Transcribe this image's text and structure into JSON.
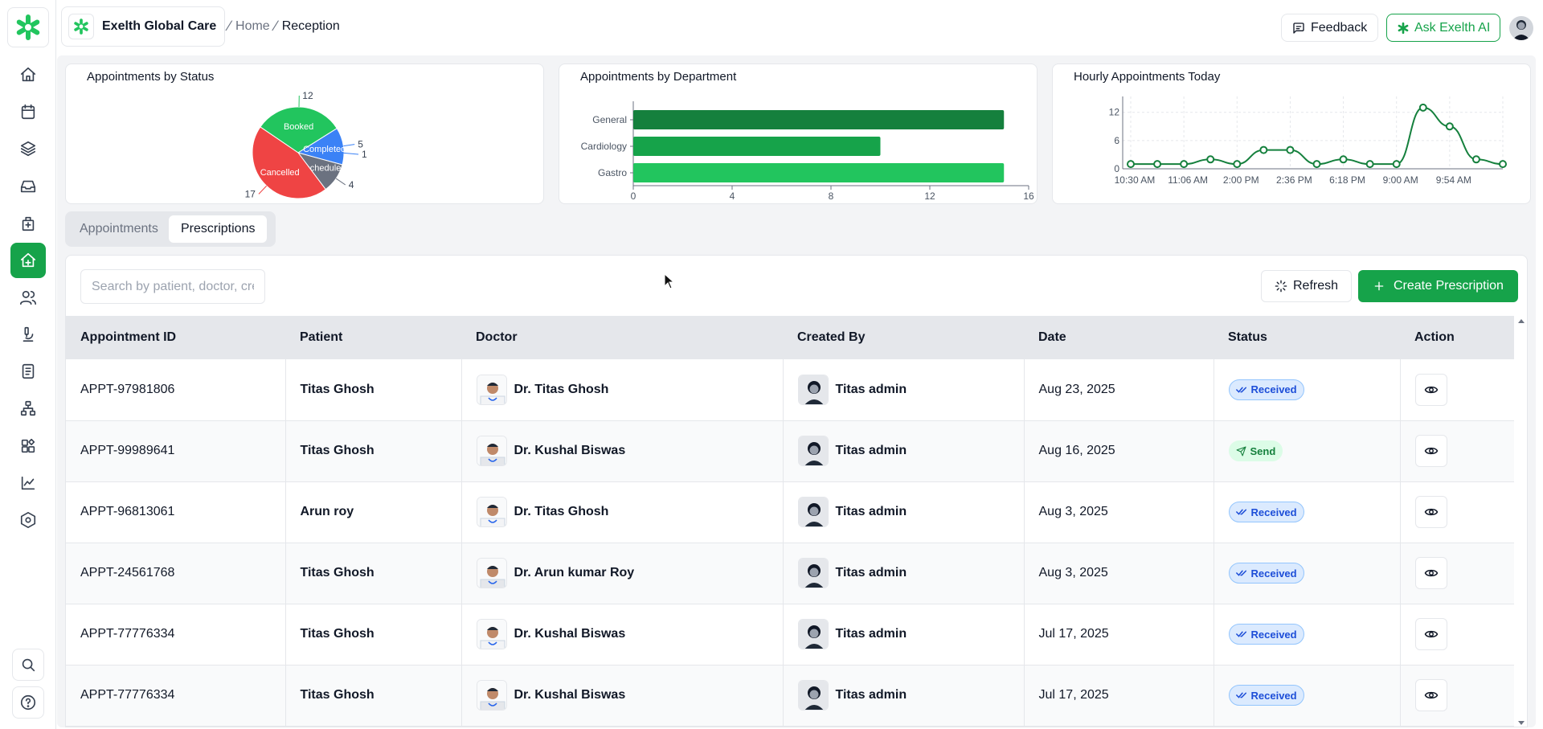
{
  "app": {
    "org_name": "Exelth Global Care",
    "accent": "#16a34a"
  },
  "breadcrumb": {
    "home": "Home",
    "current": "Reception"
  },
  "header": {
    "feedback_label": "Feedback",
    "ask_ai_label": "Ask Exelth AI"
  },
  "sidebar": {
    "items": [
      {
        "name": "home-icon"
      },
      {
        "name": "calendar-icon"
      },
      {
        "name": "layers-icon"
      },
      {
        "name": "inbox-icon"
      },
      {
        "name": "hospital-icon"
      },
      {
        "name": "reception-icon",
        "active": true
      },
      {
        "name": "users-icon"
      },
      {
        "name": "microscope-icon"
      },
      {
        "name": "document-icon"
      },
      {
        "name": "network-icon"
      },
      {
        "name": "apps-icon"
      },
      {
        "name": "chart-icon"
      },
      {
        "name": "hexagon-settings-icon"
      }
    ],
    "bottom": [
      {
        "name": "search-icon"
      },
      {
        "name": "help-icon"
      }
    ]
  },
  "charts": {
    "status_title": "Appointments by Status",
    "department_title": "Appointments by Department",
    "hourly_title": "Hourly Appointments Today"
  },
  "chart_data": [
    {
      "type": "pie",
      "title": "Appointments by Status",
      "labels": [
        "Booked",
        "Completed",
        "Rescheduled",
        "Cancelled"
      ],
      "values": [
        12,
        5,
        4,
        17
      ],
      "extra_labels": [
        "1"
      ],
      "colors": [
        "#22c55e",
        "#3b82f6",
        "#6b7280",
        "#ef4444"
      ]
    },
    {
      "type": "bar",
      "orientation": "horizontal",
      "title": "Appointments by Department",
      "categories": [
        "General",
        "Cardiology",
        "Gastro"
      ],
      "values": [
        15,
        10,
        15
      ],
      "xlim": [
        0,
        16
      ],
      "xticks": [
        0,
        4,
        8,
        12,
        16
      ],
      "colors": [
        "#15803d",
        "#16a34a",
        "#22c55e"
      ]
    },
    {
      "type": "line",
      "title": "Hourly Appointments Today",
      "values": [
        1,
        1,
        1,
        2,
        1,
        4,
        4,
        1,
        2,
        1,
        1,
        13,
        9,
        2,
        1
      ],
      "xtick_labels": [
        "10:30 AM",
        "11:06 AM",
        "2:00 PM",
        "2:36 PM",
        "6:18 PM",
        "9:00 AM",
        "9:54 AM"
      ],
      "ylim": [
        0,
        14
      ],
      "yticks": [
        0,
        6,
        12
      ],
      "color": "#15803d",
      "grid": true
    }
  ],
  "tabs": [
    {
      "label": "Appointments"
    },
    {
      "label": "Prescriptions",
      "active": true
    }
  ],
  "toolbar": {
    "search_placeholder": "Search by patient, doctor, created by",
    "refresh_label": "Refresh",
    "create_label": "Create Prescription"
  },
  "table": {
    "headers": [
      "Appointment ID",
      "Patient",
      "Doctor",
      "Created By",
      "Date",
      "Status",
      "Action"
    ],
    "rows": [
      {
        "id": "APPT-97981806",
        "patient": "Titas Ghosh",
        "doctor": "Dr. Titas Ghosh",
        "created_by": "Titas admin",
        "date": "Aug 23, 2025",
        "status": "Received"
      },
      {
        "id": "APPT-99989641",
        "patient": "Titas Ghosh",
        "doctor": "Dr. Kushal Biswas",
        "created_by": "Titas admin",
        "date": "Aug 16, 2025",
        "status": "Send"
      },
      {
        "id": "APPT-96813061",
        "patient": "Arun roy",
        "doctor": "Dr. Titas Ghosh",
        "created_by": "Titas admin",
        "date": "Aug 3, 2025",
        "status": "Received"
      },
      {
        "id": "APPT-24561768",
        "patient": "Titas Ghosh",
        "doctor": "Dr. Arun kumar Roy",
        "created_by": "Titas admin",
        "date": "Aug 3, 2025",
        "status": "Received"
      },
      {
        "id": "APPT-77776334",
        "patient": "Titas Ghosh",
        "doctor": "Dr. Kushal Biswas",
        "created_by": "Titas admin",
        "date": "Jul 17, 2025",
        "status": "Received"
      },
      {
        "id": "APPT-77776334",
        "patient": "Titas Ghosh",
        "doctor": "Dr. Kushal Biswas",
        "created_by": "Titas admin",
        "date": "Jul 17, 2025",
        "status": "Received"
      }
    ]
  }
}
